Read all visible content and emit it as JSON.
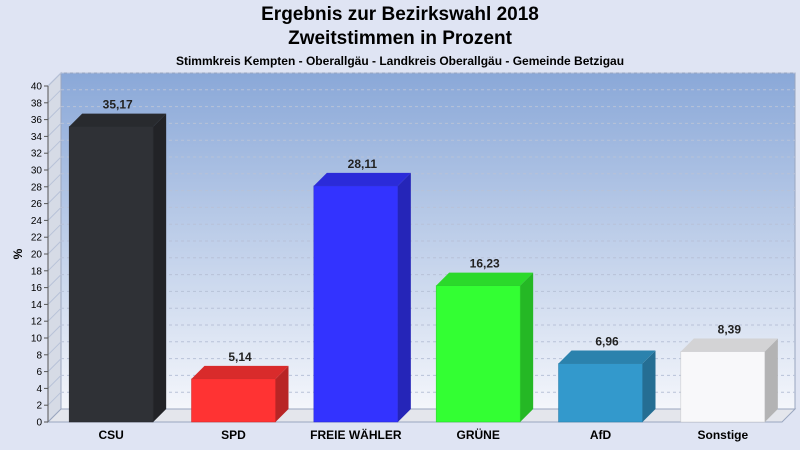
{
  "chart_data": {
    "type": "bar",
    "title": "Ergebnis zur Bezirkswahl 2018",
    "subtitle_line1": "Zweitstimmen in Prozent",
    "subtitle_line2": "Stimmkreis Kempten - Oberallgäu - Landkreis Oberallgäu - Gemeinde Betzigau",
    "ylabel": "%",
    "xlabel": "",
    "ylim": [
      0,
      40
    ],
    "ytick_step": 2,
    "grid": true,
    "categories": [
      "CSU",
      "SPD",
      "FREIE WÄHLER",
      "GRÜNE",
      "AfD",
      "Sonstige"
    ],
    "values": [
      35.17,
      5.14,
      28.11,
      16.23,
      6.96,
      8.39
    ],
    "value_labels": [
      "35,17",
      "5,14",
      "28,11",
      "16,23",
      "6,96",
      "8,39"
    ],
    "colors": [
      "#2f3136",
      "#ff3333",
      "#3333ff",
      "#33ff33",
      "#3399cc",
      "#f8f8fa"
    ]
  }
}
